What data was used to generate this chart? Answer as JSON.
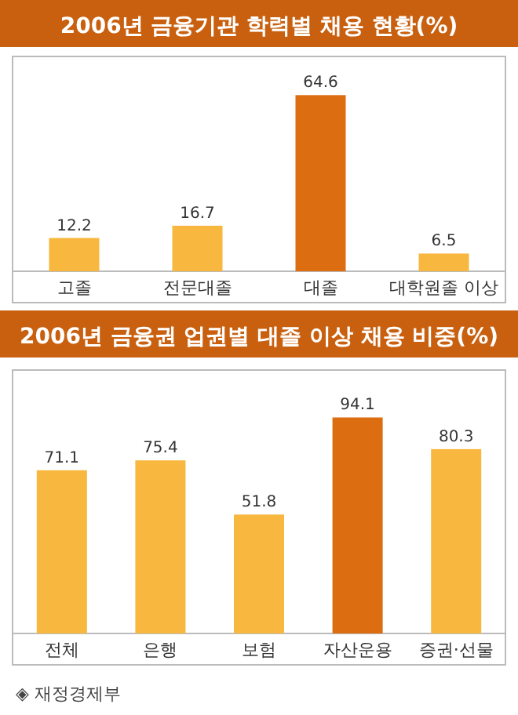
{
  "chart_data": [
    {
      "type": "bar",
      "title": "2006년 금융기관 학력별 채용 현황(%)",
      "categories": [
        "고졸",
        "전문대졸",
        "대졸",
        "대학원졸 이상"
      ],
      "values": [
        12.2,
        16.7,
        64.6,
        6.5
      ],
      "data_labels": true,
      "colors": [
        "#f8b73e",
        "#f8b73e",
        "#dc6d10",
        "#f8b73e"
      ]
    },
    {
      "type": "bar",
      "title": "2006년 금융권 업권별 대졸 이상 채용 비중(%)",
      "categories": [
        "전체",
        "은행",
        "보험",
        "자산운용",
        "증권·선물"
      ],
      "values": [
        71.1,
        75.4,
        51.8,
        94.1,
        80.3
      ],
      "data_labels": true,
      "colors": [
        "#f8b73e",
        "#f8b73e",
        "#f8b73e",
        "#dc6d10",
        "#f8b73e"
      ],
      "annotations": [
        "◈ 재정경제부"
      ]
    }
  ]
}
